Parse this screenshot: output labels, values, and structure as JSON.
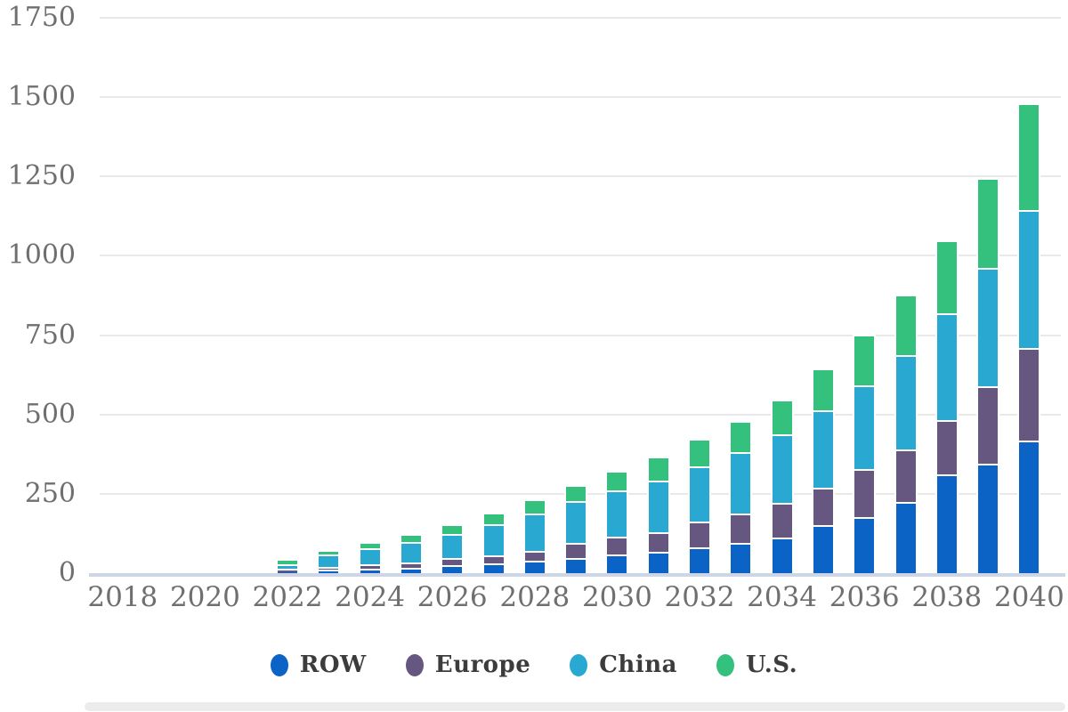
{
  "chart_data": {
    "type": "bar",
    "stacked": true,
    "title": "",
    "xlabel": "",
    "ylabel": "",
    "x": [
      2018,
      2019,
      2020,
      2021,
      2022,
      2023,
      2024,
      2025,
      2026,
      2027,
      2028,
      2029,
      2030,
      2031,
      2032,
      2033,
      2034,
      2035,
      2036,
      2037,
      2038,
      2039,
      2040
    ],
    "series": [
      {
        "name": "ROW",
        "color": "#0a63c5",
        "values": [
          0,
          0,
          0,
          0,
          3,
          11,
          15,
          16,
          24,
          31,
          40,
          49,
          59,
          68,
          80,
          96,
          113,
          152,
          177,
          225,
          312,
          345,
          417
        ]
      },
      {
        "name": "Europe",
        "color": "#655780",
        "values": [
          0,
          0,
          0,
          0,
          11,
          10,
          12,
          17,
          23,
          26,
          31,
          45,
          55,
          62,
          82,
          93,
          109,
          118,
          150,
          165,
          171,
          245,
          293
        ]
      },
      {
        "name": "China",
        "color": "#29a9d2",
        "values": [
          0,
          0,
          0,
          0,
          14,
          38,
          52,
          65,
          77,
          97,
          116,
          134,
          148,
          162,
          175,
          193,
          216,
          243,
          266,
          296,
          335,
          373,
          435
        ]
      },
      {
        "name": "U.S.",
        "color": "#34c17d",
        "values": [
          0,
          0,
          0,
          0,
          12,
          9,
          13,
          21,
          26,
          32,
          39,
          43,
          54,
          71,
          80,
          91,
          103,
          127,
          154,
          186,
          225,
          277,
          330
        ]
      }
    ],
    "ylim": [
      0,
      1750
    ],
    "yticks": [
      0,
      250,
      500,
      750,
      1000,
      1250,
      1500,
      1750
    ],
    "xticks": [
      2018,
      2020,
      2022,
      2024,
      2026,
      2028,
      2030,
      2032,
      2034,
      2036,
      2038,
      2040
    ],
    "grid": true,
    "legend_position": "bottom"
  },
  "legend": {
    "items": [
      {
        "label": "ROW",
        "color": "#0a63c5"
      },
      {
        "label": "Europe",
        "color": "#655780"
      },
      {
        "label": "China",
        "color": "#29a9d2"
      },
      {
        "label": "U.S.",
        "color": "#34c17d"
      }
    ]
  },
  "colors": {
    "gridline": "#e9e9e9",
    "axis_line": "#ccd6e6",
    "tick_text": "#6f6f6f",
    "legend_text": "#3c3c3c",
    "background": "#ffffff"
  }
}
